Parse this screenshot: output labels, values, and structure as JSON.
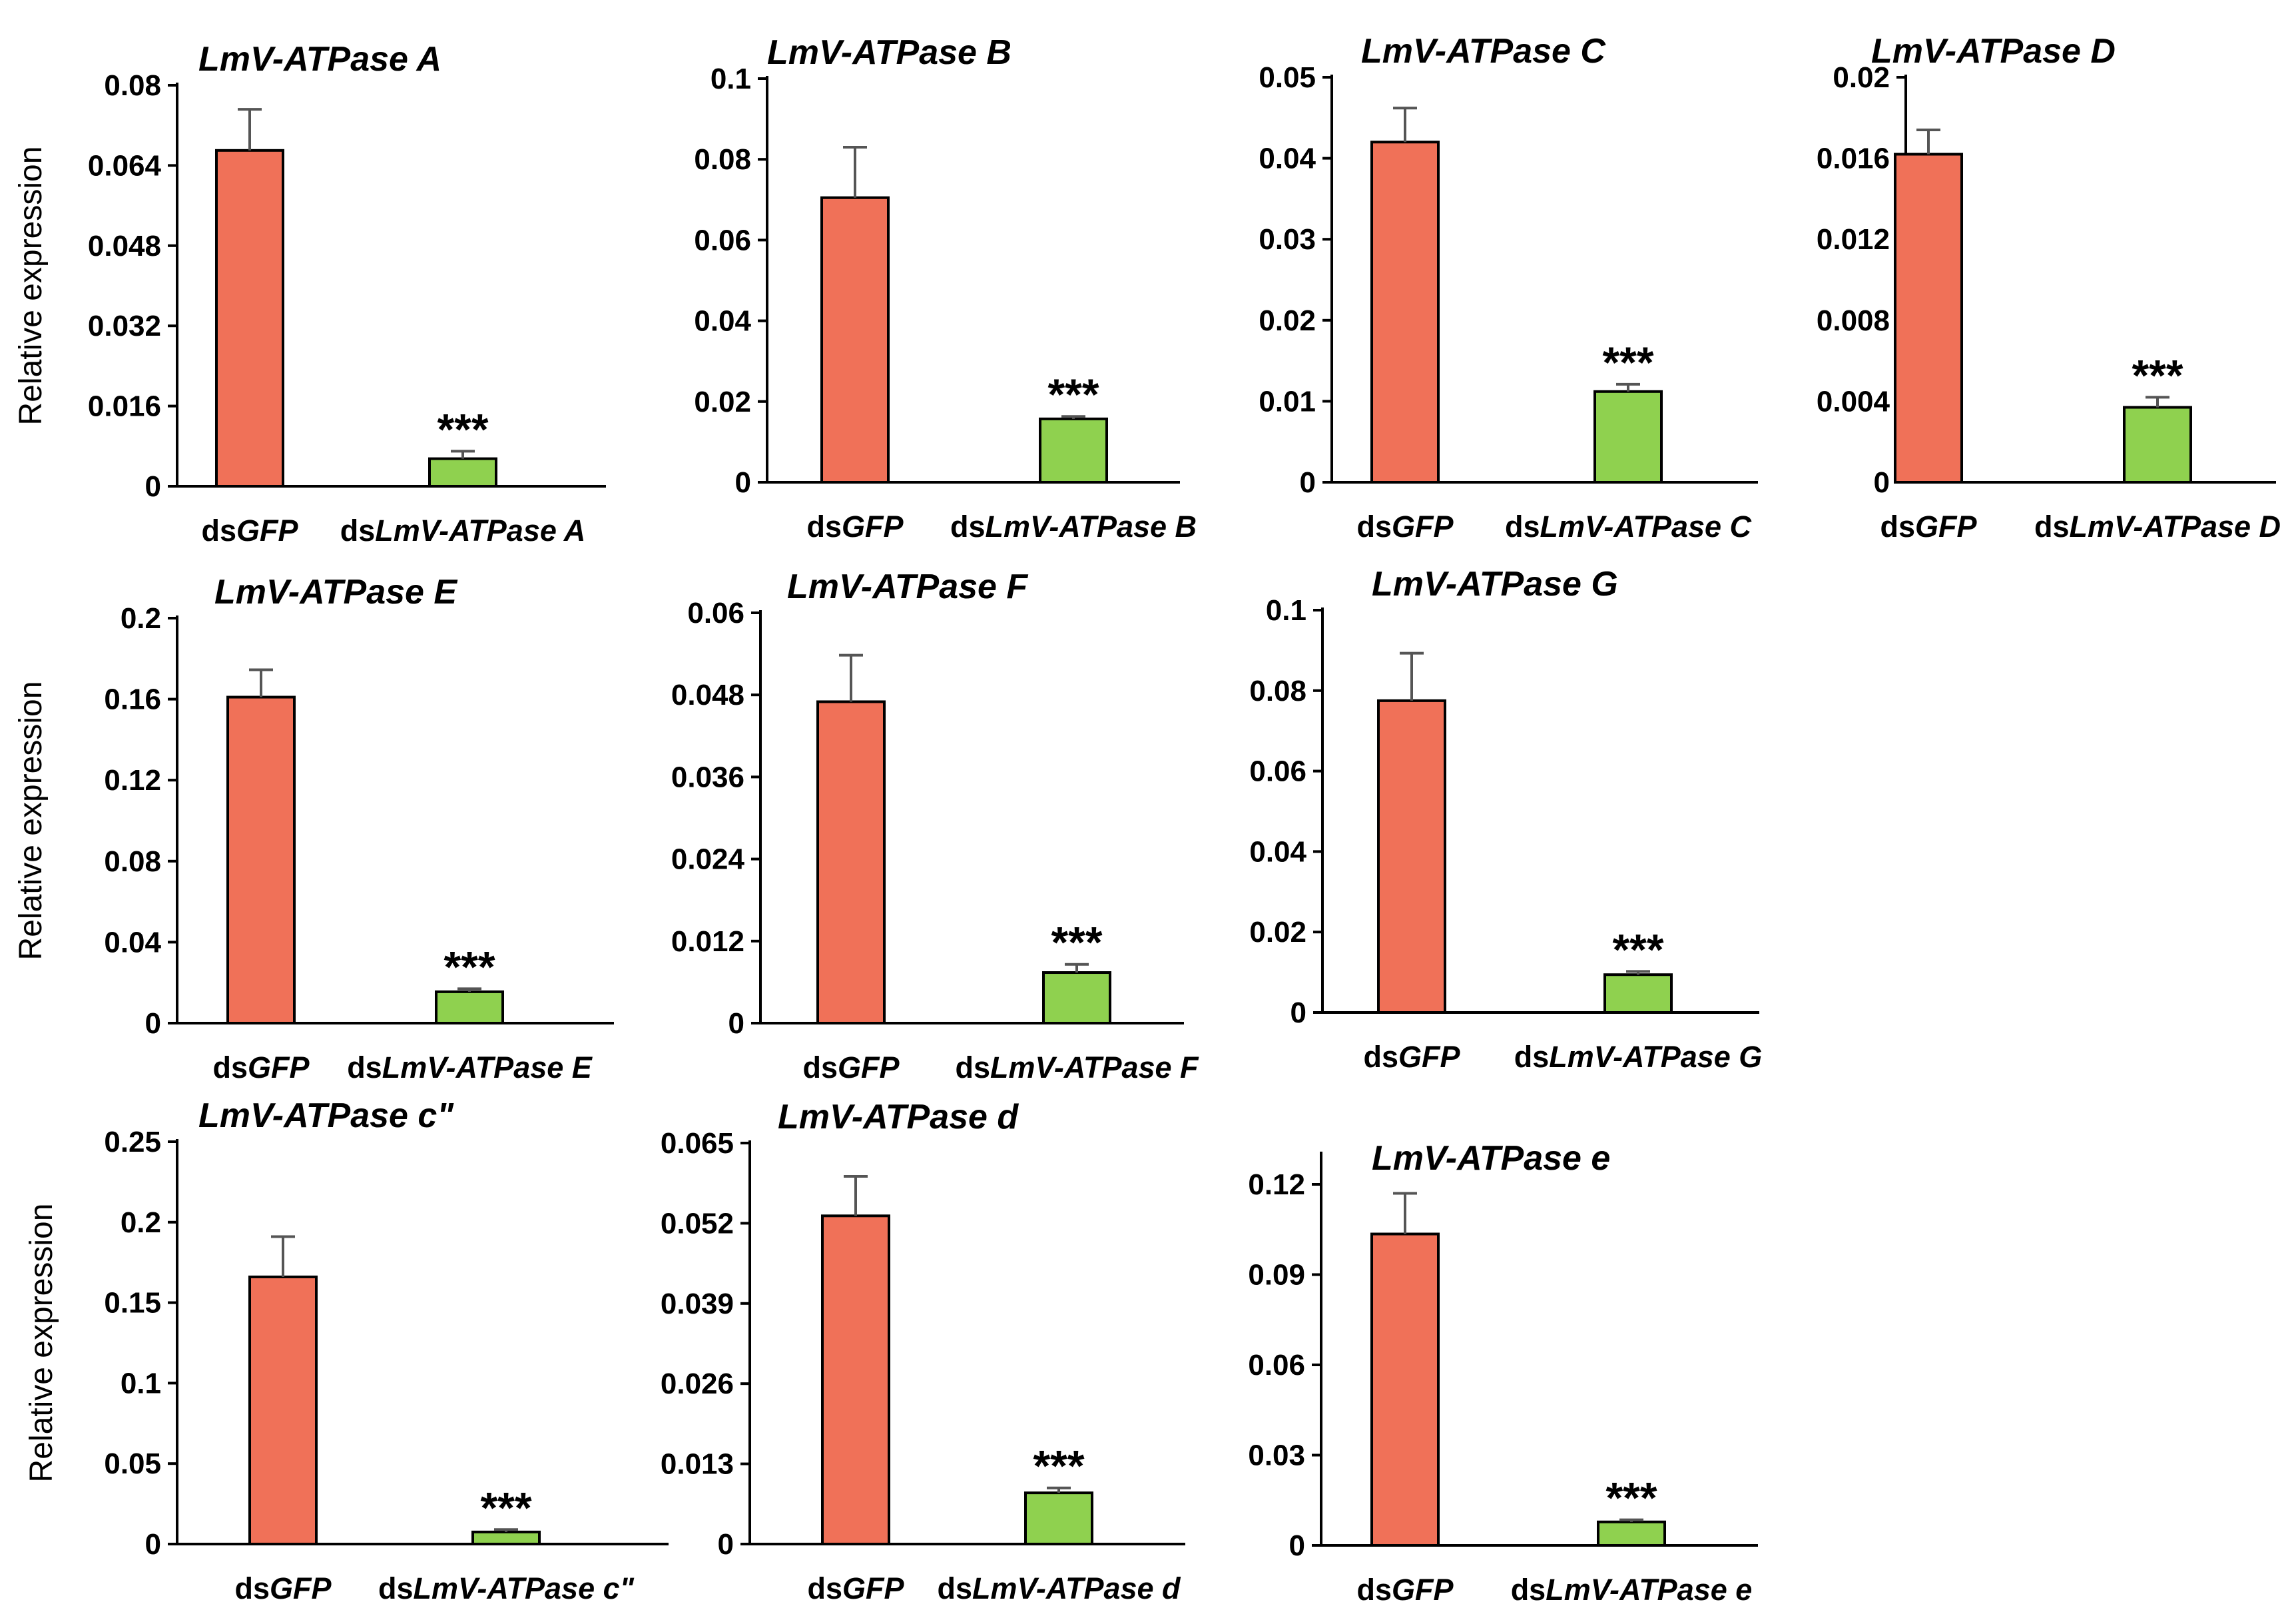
{
  "figure": {
    "colors": {
      "control": "#F07158",
      "knockdown": "#8FD14F",
      "axis": "#000000",
      "error_bar": "#555555"
    },
    "ylabel": "Relative expression"
  },
  "chart_data": [
    {
      "type": "bar",
      "title": "LmV-ATPase A",
      "ylabel": "Relative expression",
      "ylim": [
        0,
        0.08
      ],
      "yticks": [
        "0",
        "0.016",
        "0.032",
        "0.048",
        "0.064",
        "0.08"
      ],
      "categories": [
        {
          "prefix": "ds",
          "italic": "GFP"
        },
        {
          "prefix": "ds",
          "italic": "LmV-ATPase A"
        }
      ],
      "values": [
        0.067,
        0.0055
      ],
      "errors": [
        0.0082,
        0.0015
      ],
      "significance": [
        "",
        "***"
      ]
    },
    {
      "type": "bar",
      "title": "LmV-ATPase B",
      "ylabel": "",
      "ylim": [
        0,
        0.1
      ],
      "yticks": [
        "0",
        "0.02",
        "0.04",
        "0.06",
        "0.08",
        "0.1"
      ],
      "categories": [
        {
          "prefix": "ds",
          "italic": "GFP"
        },
        {
          "prefix": "ds",
          "italic": "LmV-ATPase B"
        }
      ],
      "values": [
        0.0705,
        0.0157
      ],
      "errors": [
        0.0125,
        0.0006
      ],
      "significance": [
        "",
        "***"
      ]
    },
    {
      "type": "bar",
      "title": "LmV-ATPase C",
      "ylabel": "",
      "ylim": [
        0,
        0.05
      ],
      "yticks": [
        "0",
        "0.01",
        "0.02",
        "0.03",
        "0.04",
        "0.05"
      ],
      "categories": [
        {
          "prefix": "ds",
          "italic": "GFP"
        },
        {
          "prefix": "ds",
          "italic": "LmV-ATPase C"
        }
      ],
      "values": [
        0.042,
        0.0112
      ],
      "errors": [
        0.0042,
        0.0009
      ],
      "significance": [
        "",
        "***"
      ]
    },
    {
      "type": "bar",
      "title": "LmV-ATPase D",
      "ylabel": "",
      "ylim": [
        0,
        0.02
      ],
      "yticks": [
        "0",
        "0.004",
        "0.008",
        "0.012",
        "0.016",
        "0.02"
      ],
      "categories": [
        {
          "prefix": "ds",
          "italic": "GFP"
        },
        {
          "prefix": "ds",
          "italic": "LmV-ATPase D"
        }
      ],
      "values": [
        0.0162,
        0.0037
      ],
      "errors": [
        0.0012,
        0.0005
      ],
      "significance": [
        "",
        "***"
      ]
    },
    {
      "type": "bar",
      "title": "LmV-ATPase E",
      "ylabel": "Relative expression",
      "ylim": [
        0,
        0.2
      ],
      "yticks": [
        "0",
        "0.04",
        "0.08",
        "0.12",
        "0.16",
        "0.2"
      ],
      "categories": [
        {
          "prefix": "ds",
          "italic": "GFP"
        },
        {
          "prefix": "ds",
          "italic": "LmV-ATPase E"
        }
      ],
      "values": [
        0.161,
        0.0155
      ],
      "errors": [
        0.0135,
        0.0015
      ],
      "significance": [
        "",
        "***"
      ]
    },
    {
      "type": "bar",
      "title": "LmV-ATPase F",
      "ylabel": "",
      "ylim": [
        0,
        0.06
      ],
      "yticks": [
        "0",
        "0.012",
        "0.024",
        "0.036",
        "0.048",
        "0.06"
      ],
      "categories": [
        {
          "prefix": "ds",
          "italic": "GFP"
        },
        {
          "prefix": "ds",
          "italic": "LmV-ATPase F"
        }
      ],
      "values": [
        0.047,
        0.0074
      ],
      "errors": [
        0.0068,
        0.0012
      ],
      "significance": [
        "",
        "***"
      ]
    },
    {
      "type": "bar",
      "title": "LmV-ATPase G",
      "ylabel": "",
      "ylim": [
        0,
        0.1
      ],
      "yticks": [
        "0",
        "0.02",
        "0.04",
        "0.06",
        "0.08",
        "0.1"
      ],
      "categories": [
        {
          "prefix": "ds",
          "italic": "GFP"
        },
        {
          "prefix": "ds",
          "italic": "LmV-ATPase G"
        }
      ],
      "values": [
        0.0775,
        0.0094
      ],
      "errors": [
        0.0118,
        0.0008
      ],
      "significance": [
        "",
        "***"
      ]
    },
    {
      "type": "bar",
      "title": "LmV-ATPase c\"",
      "ylabel": "Relative expression",
      "ylim": [
        0,
        0.25
      ],
      "yticks": [
        "0",
        "0.05",
        "0.1",
        "0.15",
        "0.2",
        "0.25"
      ],
      "categories": [
        {
          "prefix": "ds",
          "italic": "GFP"
        },
        {
          "prefix": "ds",
          "italic": "LmV-ATPase c\""
        }
      ],
      "values": [
        0.166,
        0.0075
      ],
      "errors": [
        0.025,
        0.0015
      ],
      "significance": [
        "",
        "***"
      ]
    },
    {
      "type": "bar",
      "title": "LmV-ATPase d",
      "ylabel": "",
      "ylim": [
        0,
        0.065
      ],
      "yticks": [
        "0",
        "0.013",
        "0.026",
        "0.039",
        "0.052",
        "0.065"
      ],
      "categories": [
        {
          "prefix": "ds",
          "italic": "GFP"
        },
        {
          "prefix": "ds",
          "italic": "LmV-ATPase d"
        }
      ],
      "values": [
        0.0532,
        0.0083
      ],
      "errors": [
        0.0064,
        0.0008
      ],
      "significance": [
        "",
        "***"
      ]
    },
    {
      "type": "bar",
      "title": "LmV-ATPase e",
      "ylabel": "",
      "ylim": [
        0,
        0.13
      ],
      "yticks": [
        "0",
        "0.03",
        "0.06",
        "0.09",
        "0.12"
      ],
      "categories": [
        {
          "prefix": "ds",
          "italic": "GFP"
        },
        {
          "prefix": "ds",
          "italic": "LmV-ATPase e"
        }
      ],
      "values": [
        0.1035,
        0.0078
      ],
      "errors": [
        0.0135,
        0.0007
      ],
      "significance": [
        "",
        "***"
      ]
    }
  ]
}
